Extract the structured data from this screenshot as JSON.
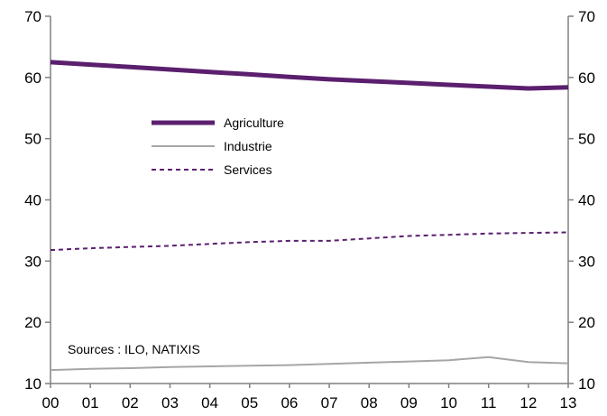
{
  "chart_data": {
    "type": "line",
    "title": "",
    "xlabel": "",
    "ylabel": "",
    "categories": [
      "00",
      "01",
      "02",
      "03",
      "04",
      "05",
      "06",
      "07",
      "08",
      "09",
      "10",
      "11",
      "12",
      "13"
    ],
    "ylim": [
      10,
      70
    ],
    "y_ticks": [
      "10",
      "20",
      "30",
      "40",
      "50",
      "60",
      "70"
    ],
    "right_axis_ticks": [
      "10",
      "20",
      "30",
      "40",
      "50",
      "60",
      "70"
    ],
    "grid": false,
    "legend_position": "center-left",
    "series": [
      {
        "name": "Agriculture",
        "color": "#5b1f6e",
        "style": "solid-thick",
        "values": [
          62.5,
          62.1,
          61.7,
          61.3,
          60.9,
          60.5,
          60.1,
          59.7,
          59.4,
          59.1,
          58.8,
          58.5,
          58.2,
          58.4
        ]
      },
      {
        "name": "Industrie",
        "color": "#a6a6a6",
        "style": "solid-thin",
        "values": [
          12.2,
          12.4,
          12.5,
          12.7,
          12.8,
          12.9,
          13.0,
          13.2,
          13.4,
          13.6,
          13.8,
          14.3,
          13.5,
          13.3
        ]
      },
      {
        "name": "Services",
        "color": "#5b1f6e",
        "style": "dashed",
        "values": [
          31.8,
          32.1,
          32.3,
          32.5,
          32.8,
          33.1,
          33.3,
          33.3,
          33.7,
          34.1,
          34.3,
          34.5,
          34.6,
          34.7
        ]
      }
    ],
    "annotations": [
      "Sources : ILO, NATIXIS"
    ]
  }
}
